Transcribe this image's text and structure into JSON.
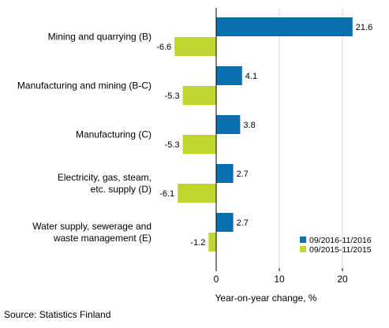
{
  "chart_data": {
    "type": "bar",
    "orientation": "horizontal",
    "categories": [
      [
        "Mining and quarrying (B)"
      ],
      [
        "Manufacturing and mining (B-C)"
      ],
      [
        "Manufacturing (C)"
      ],
      [
        "Electricity, gas, steam,",
        "etc. supply (D)"
      ],
      [
        "Water supply, sewerage and",
        "waste management (E)"
      ]
    ],
    "series": [
      {
        "name": "09/2016-11/2016",
        "color": "#0a6faf",
        "values": [
          21.6,
          4.1,
          3.8,
          2.7,
          2.7
        ]
      },
      {
        "name": "09/2015-11/2015",
        "color": "#bfd630",
        "values": [
          -6.6,
          -5.3,
          -5.3,
          -6.1,
          -1.2
        ]
      }
    ],
    "xlabel": "Year-on-year change, %",
    "xlim": [
      -10,
      25
    ],
    "xticks": [
      0,
      10,
      20
    ],
    "grid": "vertical",
    "legend": "bottom-right"
  },
  "source": "Source: Statistics Finland"
}
